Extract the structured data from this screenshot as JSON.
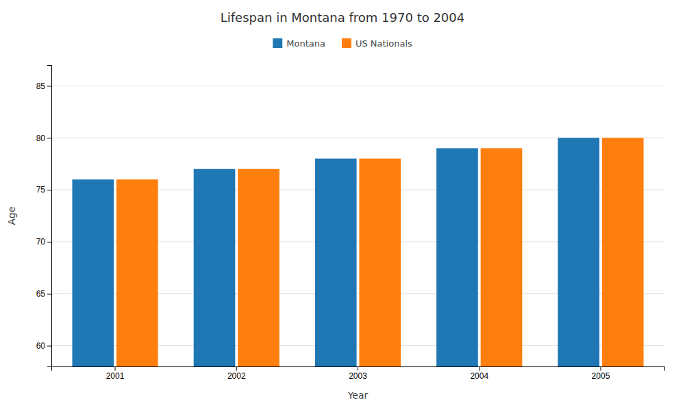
{
  "chart_data": {
    "type": "bar",
    "title": "Lifespan in Montana from 1970 to 2004",
    "xlabel": "Year",
    "ylabel": "Age",
    "categories": [
      "2001",
      "2002",
      "2003",
      "2004",
      "2005"
    ],
    "series": [
      {
        "name": "Montana",
        "values": [
          76,
          77,
          78,
          79,
          80
        ]
      },
      {
        "name": "US Nationals",
        "values": [
          76,
          77,
          78,
          79,
          80
        ]
      }
    ],
    "ylim": [
      58,
      87
    ],
    "yticks": [
      60,
      65,
      70,
      75,
      80,
      85
    ],
    "grid": true,
    "legend": "top"
  }
}
